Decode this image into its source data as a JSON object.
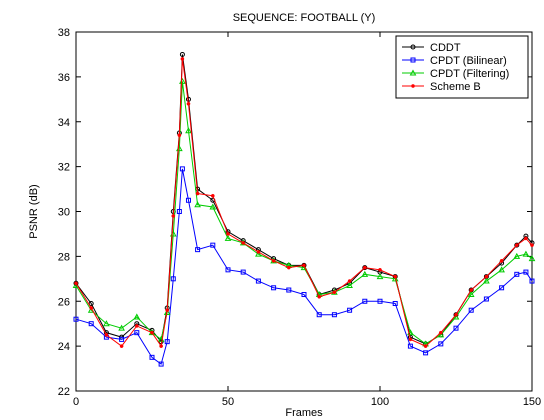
{
  "chart_data": {
    "type": "line",
    "title": "SEQUENCE: FOOTBALL (Y)",
    "xlabel": "Frames",
    "ylabel": "PSNR (dB)",
    "xlim": [
      0,
      150
    ],
    "ylim": [
      22,
      38
    ],
    "xticks": [
      0,
      50,
      100,
      150
    ],
    "yticks": [
      22,
      24,
      26,
      28,
      30,
      32,
      34,
      36,
      38
    ],
    "grid": false,
    "legend_position": "top-right",
    "x": [
      0,
      5,
      10,
      15,
      20,
      25,
      28,
      30,
      32,
      34,
      35,
      37,
      40,
      45,
      50,
      55,
      60,
      65,
      70,
      75,
      80,
      85,
      90,
      95,
      100,
      105,
      110,
      115,
      120,
      125,
      130,
      135,
      140,
      145,
      148,
      150
    ],
    "series": [
      {
        "name": "CDDT",
        "color": "#000000",
        "marker": "circle",
        "values": [
          26.8,
          25.9,
          24.6,
          24.4,
          25.0,
          24.7,
          24.2,
          25.7,
          30.0,
          33.5,
          37.0,
          35.0,
          31.0,
          30.5,
          29.1,
          28.7,
          28.3,
          27.9,
          27.6,
          27.6,
          26.3,
          26.5,
          26.8,
          27.5,
          27.3,
          27.1,
          24.4,
          24.1,
          24.5,
          25.4,
          26.5,
          27.1,
          27.7,
          28.5,
          28.9,
          28.6
        ]
      },
      {
        "name": "CPDT (Bilinear)",
        "color": "#0000ff",
        "marker": "square",
        "values": [
          25.2,
          25.0,
          24.4,
          24.3,
          24.6,
          23.5,
          23.2,
          24.2,
          27.0,
          30.0,
          31.9,
          30.5,
          28.3,
          28.5,
          27.4,
          27.3,
          26.9,
          26.6,
          26.5,
          26.3,
          25.4,
          25.4,
          25.6,
          26.0,
          26.0,
          25.9,
          24.0,
          23.7,
          24.1,
          24.8,
          25.6,
          26.1,
          26.6,
          27.2,
          27.3,
          26.9
        ]
      },
      {
        "name": "CPDT (Filtering)",
        "color": "#00cc00",
        "marker": "triangle",
        "values": [
          26.7,
          25.6,
          25.0,
          24.8,
          25.3,
          24.6,
          24.3,
          25.5,
          29.0,
          32.8,
          35.8,
          33.6,
          30.3,
          30.2,
          28.8,
          28.6,
          28.1,
          27.8,
          27.6,
          27.5,
          26.3,
          26.4,
          26.7,
          27.2,
          27.1,
          27.0,
          24.6,
          24.1,
          24.5,
          25.3,
          26.3,
          26.9,
          27.4,
          28.0,
          28.1,
          27.9
        ]
      },
      {
        "name": "Scheme B",
        "color": "#ff0000",
        "marker": "dot",
        "values": [
          26.8,
          25.7,
          24.5,
          24.0,
          24.9,
          24.6,
          24.0,
          25.6,
          29.8,
          33.4,
          36.8,
          34.8,
          30.8,
          30.7,
          29.0,
          28.6,
          28.2,
          27.8,
          27.5,
          27.6,
          26.2,
          26.4,
          26.9,
          27.5,
          27.4,
          27.1,
          24.3,
          24.0,
          24.6,
          25.4,
          26.5,
          27.1,
          27.8,
          28.5,
          28.8,
          28.5
        ]
      }
    ]
  }
}
